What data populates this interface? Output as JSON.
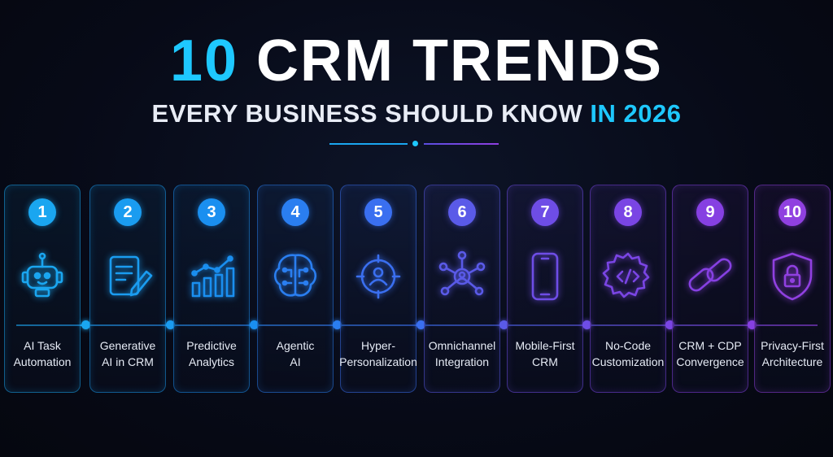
{
  "header": {
    "title_number": "10",
    "title_rest": "CRM TRENDS",
    "subtitle_main": "EVERY BUSINESS SHOULD KNOW",
    "subtitle_highlight": "IN 2026"
  },
  "colors": {
    "accent_blue": "#1ec8ff",
    "accent_purple": "#8f3fe0",
    "background": "#070a17"
  },
  "trends": [
    {
      "number": "1",
      "line1": "AI Task",
      "line2": "Automation",
      "icon": "robot-icon",
      "color": "#1aa6f0"
    },
    {
      "number": "2",
      "line1": "Generative",
      "line2": "AI in CRM",
      "icon": "document-pen-icon",
      "color": "#1a9cf0"
    },
    {
      "number": "3",
      "line1": "Predictive",
      "line2": "Analytics",
      "icon": "bar-chart-icon",
      "color": "#1a8ff0"
    },
    {
      "number": "4",
      "line1": "Agentic",
      "line2": "AI",
      "icon": "brain-circuit-icon",
      "color": "#2a7ef0"
    },
    {
      "number": "5",
      "line1": "Hyper-",
      "line2": "Personalization",
      "icon": "target-user-icon",
      "color": "#3a6ff0"
    },
    {
      "number": "6",
      "line1": "Omnichannel",
      "line2": "Integration",
      "icon": "network-hub-icon",
      "color": "#5a5ae8"
    },
    {
      "number": "7",
      "line1": "Mobile-First",
      "line2": "CRM",
      "icon": "smartphone-icon",
      "color": "#6e4de6"
    },
    {
      "number": "8",
      "line1": "No-Code",
      "line2": "Customization",
      "icon": "code-gear-icon",
      "color": "#7a45e4"
    },
    {
      "number": "9",
      "line1": "CRM + CDP",
      "line2": "Convergence",
      "icon": "chain-link-icon",
      "color": "#8640e2"
    },
    {
      "number": "10",
      "line1": "Privacy-First",
      "line2": "Architecture",
      "icon": "shield-lock-icon",
      "color": "#9040e0"
    }
  ]
}
